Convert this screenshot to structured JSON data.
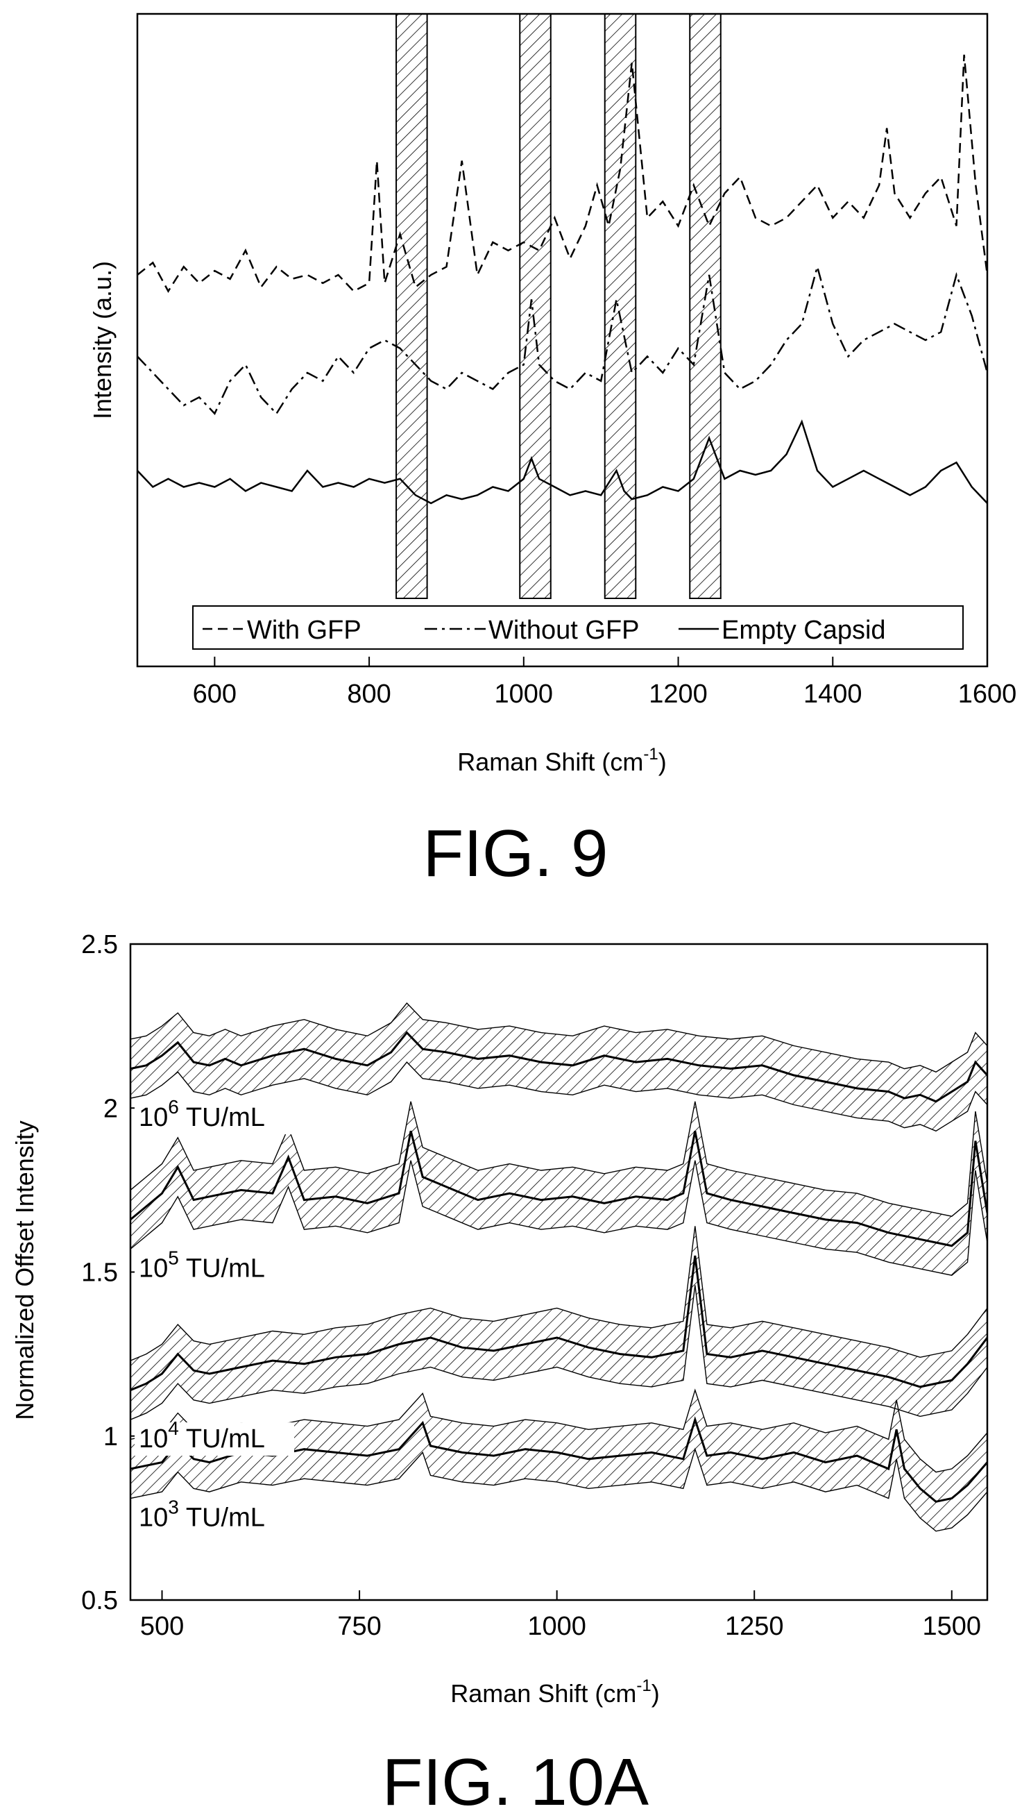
{
  "chart_data": [
    {
      "figure_label": "FIG. 9",
      "type": "line",
      "xlabel": "Raman Shift (cm",
      "xlabel_sup": "-1",
      "xlabel_end": ")",
      "ylabel": "Intensity (a.u.)",
      "xlim": [
        500,
        1600
      ],
      "x_ticks": [
        "600",
        "800",
        "1000",
        "1200",
        "1400",
        "1600"
      ],
      "y_ticks_shown": false,
      "grid": false,
      "legend_position": "bottom",
      "shaded_bands": [
        [
          835,
          875
        ],
        [
          995,
          1035
        ],
        [
          1105,
          1145
        ],
        [
          1215,
          1255
        ]
      ],
      "series": [
        {
          "name": "With GFP",
          "style": "dashed",
          "x": [
            500,
            520,
            540,
            560,
            580,
            600,
            620,
            640,
            660,
            680,
            700,
            720,
            740,
            760,
            780,
            800,
            810,
            820,
            840,
            860,
            880,
            900,
            920,
            940,
            960,
            980,
            1000,
            1020,
            1040,
            1060,
            1080,
            1095,
            1110,
            1125,
            1140,
            1160,
            1180,
            1200,
            1220,
            1240,
            1260,
            1280,
            1300,
            1320,
            1340,
            1360,
            1380,
            1400,
            1420,
            1440,
            1460,
            1470,
            1480,
            1500,
            1520,
            1540,
            1560,
            1570,
            1585,
            1600
          ],
          "y": [
            4.2,
            4.35,
            4.0,
            4.3,
            4.1,
            4.25,
            4.15,
            4.5,
            4.05,
            4.3,
            4.15,
            4.2,
            4.1,
            4.2,
            4.0,
            4.1,
            5.6,
            4.1,
            4.7,
            4.05,
            4.2,
            4.3,
            5.6,
            4.2,
            4.6,
            4.5,
            4.6,
            4.5,
            4.9,
            4.4,
            4.8,
            5.3,
            4.8,
            5.5,
            6.8,
            4.9,
            5.1,
            4.8,
            5.3,
            4.8,
            5.2,
            5.4,
            4.9,
            4.8,
            4.9,
            5.1,
            5.3,
            4.9,
            5.1,
            4.9,
            5.3,
            6.0,
            5.2,
            4.9,
            5.2,
            5.4,
            4.8,
            6.9,
            5.3,
            4.2
          ]
        },
        {
          "name": "Without GFP",
          "style": "dash-dot",
          "x": [
            500,
            520,
            540,
            560,
            580,
            600,
            620,
            640,
            660,
            680,
            700,
            720,
            740,
            760,
            780,
            800,
            820,
            840,
            860,
            880,
            900,
            920,
            940,
            960,
            980,
            1000,
            1010,
            1020,
            1040,
            1060,
            1080,
            1100,
            1120,
            1140,
            1160,
            1180,
            1200,
            1220,
            1240,
            1260,
            1280,
            1300,
            1320,
            1340,
            1360,
            1380,
            1400,
            1420,
            1440,
            1460,
            1480,
            1500,
            1520,
            1540,
            1560,
            1580,
            1600
          ],
          "y": [
            3.2,
            3.0,
            2.8,
            2.6,
            2.7,
            2.5,
            2.9,
            3.1,
            2.7,
            2.5,
            2.8,
            3.0,
            2.9,
            3.2,
            3.0,
            3.3,
            3.4,
            3.3,
            3.1,
            2.9,
            2.8,
            3.0,
            2.9,
            2.8,
            3.0,
            3.1,
            3.9,
            3.1,
            2.9,
            2.8,
            3.0,
            2.9,
            3.9,
            3.0,
            3.2,
            3.0,
            3.3,
            3.1,
            4.2,
            3.0,
            2.8,
            2.9,
            3.1,
            3.4,
            3.6,
            4.3,
            3.6,
            3.2,
            3.4,
            3.5,
            3.6,
            3.5,
            3.4,
            3.5,
            4.2,
            3.7,
            3.0
          ]
        },
        {
          "name": "Empty Capsid",
          "style": "solid",
          "x": [
            500,
            520,
            540,
            560,
            580,
            600,
            620,
            640,
            660,
            680,
            700,
            720,
            740,
            760,
            780,
            800,
            820,
            840,
            860,
            880,
            900,
            920,
            940,
            960,
            980,
            1000,
            1010,
            1020,
            1040,
            1060,
            1080,
            1100,
            1120,
            1130,
            1140,
            1160,
            1180,
            1200,
            1220,
            1240,
            1260,
            1280,
            1300,
            1320,
            1340,
            1360,
            1380,
            1400,
            1420,
            1440,
            1460,
            1480,
            1500,
            1520,
            1540,
            1560,
            1580,
            1600
          ],
          "y": [
            1.8,
            1.6,
            1.7,
            1.6,
            1.65,
            1.6,
            1.7,
            1.55,
            1.65,
            1.6,
            1.55,
            1.8,
            1.6,
            1.65,
            1.6,
            1.7,
            1.65,
            1.7,
            1.5,
            1.4,
            1.5,
            1.45,
            1.5,
            1.6,
            1.55,
            1.7,
            1.95,
            1.7,
            1.6,
            1.5,
            1.55,
            1.5,
            1.8,
            1.55,
            1.45,
            1.5,
            1.6,
            1.55,
            1.7,
            2.2,
            1.7,
            1.8,
            1.75,
            1.8,
            2.0,
            2.4,
            1.8,
            1.6,
            1.7,
            1.8,
            1.7,
            1.6,
            1.5,
            1.6,
            1.8,
            1.9,
            1.6,
            1.4
          ]
        }
      ]
    },
    {
      "figure_label": "FIG. 10A",
      "type": "line",
      "xlabel": "Raman Shift (cm",
      "xlabel_sup": "-1",
      "xlabel_end": ")",
      "ylabel": "Normalized Offset Intensity",
      "xlim": [
        460,
        1545
      ],
      "ylim": [
        0.5,
        2.5
      ],
      "x_ticks": [
        "500",
        "750",
        "1000",
        "1250",
        "1500"
      ],
      "y_ticks": [
        "0.5",
        "1",
        "1.5",
        "2",
        "2.5"
      ],
      "grid": false,
      "legend_position": "none",
      "band_halfwidth": 0.09,
      "series": [
        {
          "name_base": "10",
          "name_exp": "6",
          "name_unit": "TU/mL",
          "x": [
            460,
            480,
            500,
            520,
            540,
            560,
            580,
            600,
            640,
            680,
            720,
            760,
            790,
            810,
            830,
            860,
            900,
            940,
            980,
            1020,
            1060,
            1100,
            1140,
            1180,
            1220,
            1260,
            1300,
            1340,
            1380,
            1420,
            1440,
            1460,
            1480,
            1500,
            1520,
            1530,
            1545
          ],
          "y": [
            2.12,
            2.13,
            2.16,
            2.2,
            2.14,
            2.13,
            2.15,
            2.13,
            2.16,
            2.18,
            2.15,
            2.13,
            2.17,
            2.23,
            2.18,
            2.17,
            2.15,
            2.16,
            2.14,
            2.13,
            2.16,
            2.14,
            2.15,
            2.13,
            2.12,
            2.13,
            2.1,
            2.08,
            2.06,
            2.05,
            2.03,
            2.04,
            2.02,
            2.05,
            2.08,
            2.14,
            2.1
          ]
        },
        {
          "name_base": "10",
          "name_exp": "5",
          "name_unit": "TU/mL",
          "x": [
            460,
            480,
            500,
            520,
            540,
            560,
            600,
            640,
            660,
            680,
            720,
            760,
            800,
            815,
            830,
            860,
            900,
            940,
            980,
            1020,
            1060,
            1100,
            1140,
            1160,
            1175,
            1190,
            1220,
            1260,
            1300,
            1340,
            1380,
            1420,
            1460,
            1500,
            1520,
            1530,
            1545
          ],
          "y": [
            1.66,
            1.7,
            1.74,
            1.82,
            1.72,
            1.73,
            1.75,
            1.74,
            1.85,
            1.72,
            1.73,
            1.71,
            1.74,
            1.93,
            1.79,
            1.76,
            1.72,
            1.74,
            1.72,
            1.73,
            1.71,
            1.73,
            1.72,
            1.74,
            1.93,
            1.74,
            1.72,
            1.7,
            1.68,
            1.66,
            1.65,
            1.62,
            1.6,
            1.58,
            1.62,
            1.9,
            1.68
          ]
        },
        {
          "name_base": "10",
          "name_exp": "4",
          "name_unit": "TU/mL",
          "x": [
            460,
            480,
            500,
            520,
            540,
            560,
            600,
            640,
            680,
            720,
            760,
            800,
            840,
            880,
            920,
            960,
            1000,
            1040,
            1080,
            1120,
            1160,
            1175,
            1190,
            1220,
            1260,
            1300,
            1340,
            1380,
            1420,
            1460,
            1500,
            1520,
            1545
          ],
          "y": [
            1.14,
            1.16,
            1.19,
            1.25,
            1.2,
            1.19,
            1.21,
            1.23,
            1.22,
            1.24,
            1.25,
            1.28,
            1.3,
            1.27,
            1.26,
            1.28,
            1.3,
            1.27,
            1.25,
            1.24,
            1.26,
            1.55,
            1.25,
            1.24,
            1.26,
            1.24,
            1.22,
            1.2,
            1.18,
            1.15,
            1.17,
            1.22,
            1.3
          ]
        },
        {
          "name_base": "10",
          "name_exp": "3",
          "name_unit": "TU/mL",
          "x": [
            460,
            480,
            500,
            520,
            540,
            560,
            600,
            640,
            680,
            720,
            760,
            800,
            830,
            840,
            880,
            920,
            960,
            1000,
            1040,
            1080,
            1120,
            1160,
            1175,
            1190,
            1220,
            1260,
            1300,
            1340,
            1380,
            1420,
            1430,
            1440,
            1460,
            1480,
            1500,
            1520,
            1545
          ],
          "y": [
            0.9,
            0.91,
            0.92,
            0.98,
            0.93,
            0.92,
            0.95,
            0.94,
            0.96,
            0.95,
            0.94,
            0.96,
            1.04,
            0.97,
            0.95,
            0.94,
            0.96,
            0.95,
            0.93,
            0.94,
            0.95,
            0.93,
            1.05,
            0.94,
            0.95,
            0.93,
            0.95,
            0.92,
            0.94,
            0.9,
            1.02,
            0.9,
            0.84,
            0.8,
            0.81,
            0.85,
            0.92
          ]
        }
      ]
    }
  ]
}
